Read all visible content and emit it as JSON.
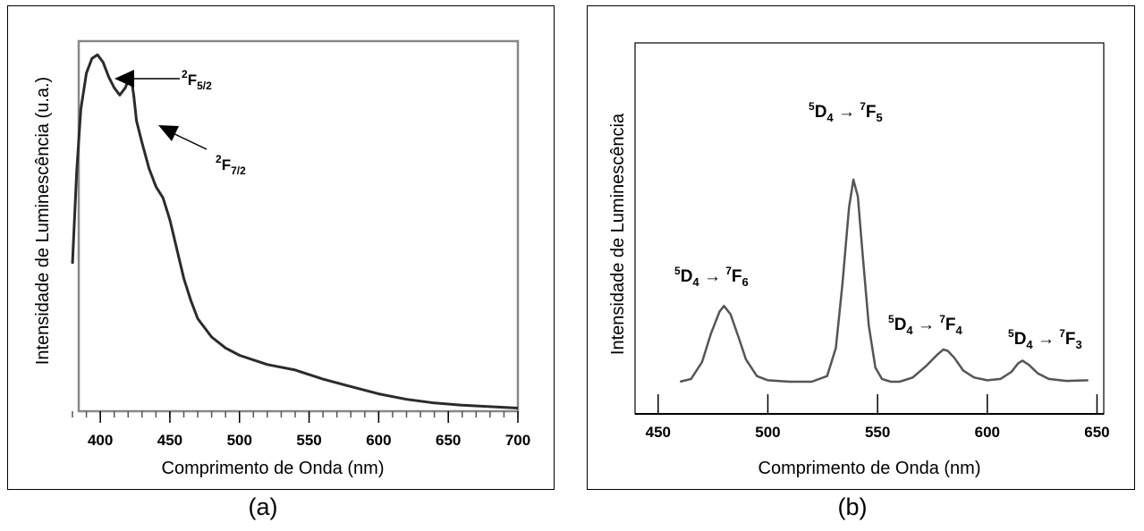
{
  "chart_data": [
    {
      "type": "line",
      "caption": "(a)",
      "xlabel": "Comprimento de Onda (nm)",
      "ylabel": "Intensidade de Luminescência (u.a.)",
      "xlim": [
        380,
        700
      ],
      "xticks": [
        400,
        450,
        500,
        550,
        600,
        650,
        700
      ],
      "ylim": [
        0,
        100
      ],
      "grid": false,
      "series": [
        {
          "x": [
            380,
            383,
            386,
            390,
            394,
            398,
            402,
            406,
            410,
            414,
            418,
            420,
            422,
            424,
            426,
            430,
            435,
            440,
            445,
            450,
            455,
            460,
            465,
            470,
            480,
            490,
            500,
            520,
            540,
            560,
            580,
            600,
            620,
            640,
            660,
            680,
            700
          ],
          "y": [
            40,
            65,
            82,
            92,
            96,
            97,
            95,
            91,
            88,
            86,
            88,
            90,
            91,
            86,
            79,
            73,
            66,
            61,
            58,
            52,
            44,
            36,
            30,
            25,
            20,
            17,
            15,
            12.5,
            11,
            8.5,
            6.5,
            4.5,
            3,
            2,
            1.4,
            1,
            0.6
          ]
        }
      ],
      "annotations": [
        {
          "main": "F",
          "sup": "2",
          "sub": "5/2",
          "x": 397,
          "y": 97
        },
        {
          "main": "F",
          "sup": "2",
          "sub": "7/2",
          "x": 422,
          "y": 91
        }
      ]
    },
    {
      "type": "line",
      "caption": "(b)",
      "xlabel": "Comprimento de Onda (nm)",
      "ylabel": "Intensidade de Luminescência",
      "xlim": [
        435,
        660
      ],
      "xticks": [
        450,
        500,
        550,
        600,
        650
      ],
      "ylim": [
        0,
        100
      ],
      "grid": false,
      "series": [
        {
          "x": [
            460,
            465,
            470,
            474,
            478,
            480,
            483,
            487,
            490,
            495,
            500,
            510,
            520,
            527,
            531,
            534,
            537,
            539,
            541,
            543,
            546,
            549,
            552,
            556,
            560,
            566,
            572,
            577,
            580,
            582,
            585,
            589,
            594,
            600,
            606,
            611,
            614,
            616,
            619,
            623,
            628,
            636,
            646
          ],
          "y": [
            0,
            1,
            7,
            17,
            25,
            27,
            24,
            15,
            8,
            2,
            0.5,
            0,
            0,
            2,
            12,
            35,
            62,
            72,
            66,
            47,
            20,
            5,
            1,
            0,
            0,
            1.5,
            5.5,
            9.5,
            11.5,
            11,
            8.5,
            4,
            1.5,
            0.5,
            1,
            3.5,
            6.5,
            7.5,
            6,
            3,
            1,
            0.3,
            0.5
          ]
        }
      ],
      "annotations": [
        {
          "lower": "D",
          "lower_sup": "5",
          "lower_sub": "4",
          "arrow": "→",
          "upper": "F",
          "upper_sup": "7",
          "upper_sub": "6"
        },
        {
          "lower": "D",
          "lower_sup": "5",
          "lower_sub": "4",
          "arrow": "→",
          "upper": "F",
          "upper_sup": "7",
          "upper_sub": "5"
        },
        {
          "lower": "D",
          "lower_sup": "5",
          "lower_sub": "4",
          "arrow": "→",
          "upper": "F",
          "upper_sup": "7",
          "upper_sub": "4"
        },
        {
          "lower": "D",
          "lower_sup": "5",
          "lower_sub": "4",
          "arrow": "→",
          "upper": "F",
          "upper_sup": "7",
          "upper_sub": "3"
        }
      ]
    }
  ]
}
